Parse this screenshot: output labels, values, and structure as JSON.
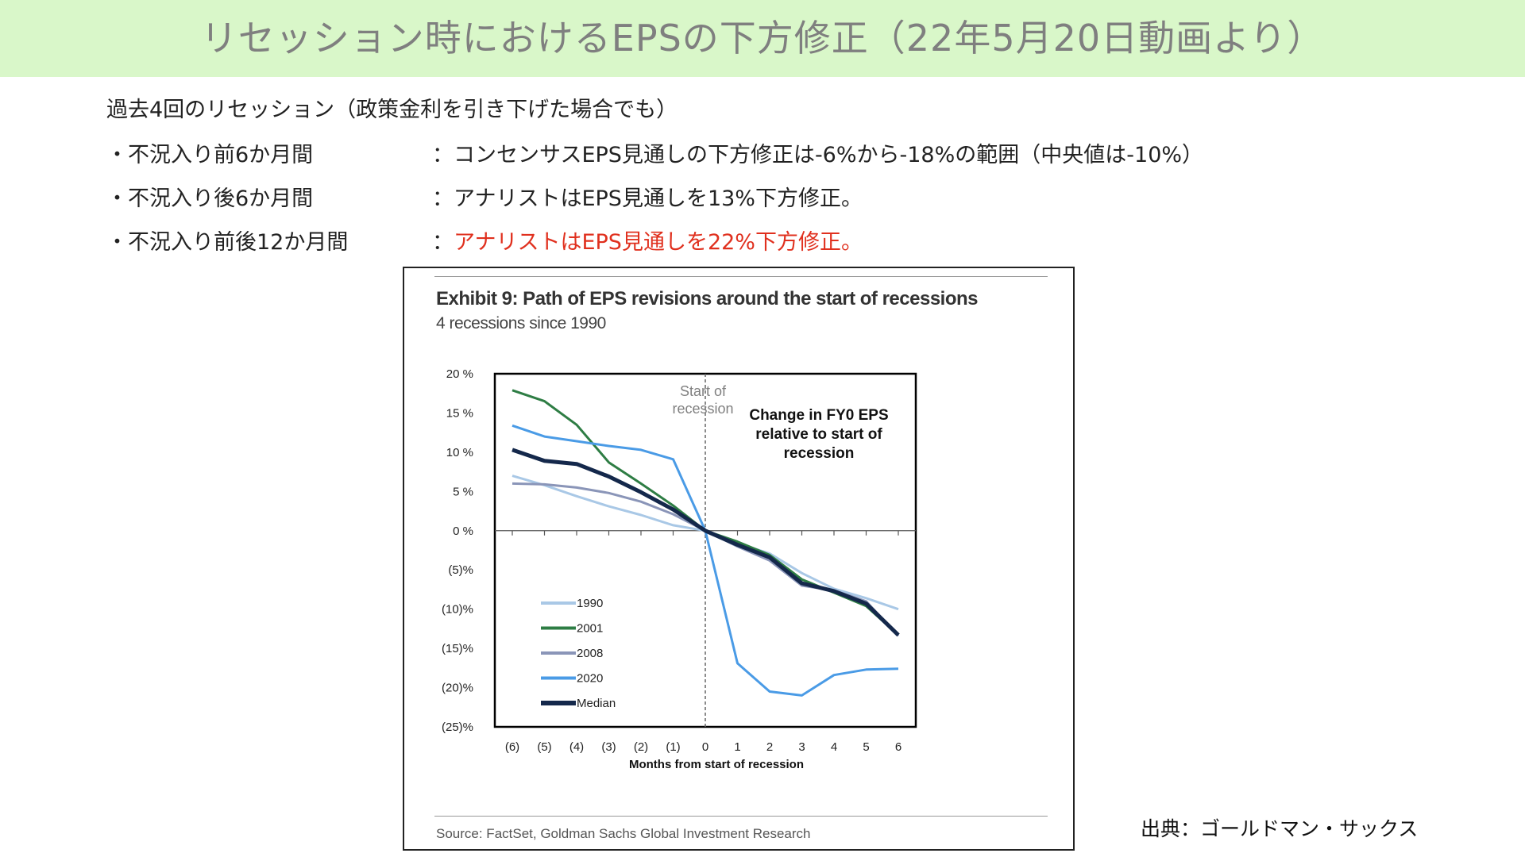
{
  "banner": {
    "title": "リセッション時におけるEPSの下方修正（22年5月20日動画より）",
    "bg_color": "#d9f7c9",
    "text_color": "#7f7f7f"
  },
  "summary": {
    "intro": "過去4回のリセッション（政策金利を引き下げた場合でも）",
    "rows": [
      {
        "label": "・不況入り前6か月間",
        "value": "：コンセンサスEPS見通しの下方修正は-6%から-18%の範囲（中央値は-10%）",
        "highlight": false
      },
      {
        "label": "・不況入り後6か月間",
        "value": "：アナリストはEPS見通しを13%下方修正。",
        "highlight": false
      },
      {
        "label": "・不況入り前後12か月間",
        "value": "：",
        "value_highlight": "アナリストはEPS見通しを22%下方修正。",
        "highlight": true
      }
    ],
    "highlight_color": "#e0301e"
  },
  "exhibit": {
    "title": "Exhibit 9: Path of EPS revisions around the start of recessions",
    "subtitle": "4 recessions since 1990",
    "source": "Source: FactSet, Goldman Sachs Global Investment Research"
  },
  "credit": "出典：ゴールドマン・サックス",
  "chart_data": {
    "type": "line",
    "title": "Exhibit 9: Path of EPS revisions around the start of recessions",
    "subtitle": "4 recessions since 1990",
    "xlabel": "Months from start of recession",
    "ylabel": "",
    "x": [
      -6,
      -5,
      -4,
      -3,
      -2,
      -1,
      0,
      1,
      2,
      3,
      4,
      5,
      6
    ],
    "x_tick_labels": [
      "(6)",
      "(5)",
      "(4)",
      "(3)",
      "(2)",
      "(1)",
      "0",
      "1",
      "2",
      "3",
      "4",
      "5",
      "6"
    ],
    "ylim": [
      -25,
      20
    ],
    "y_ticks": [
      20,
      15,
      10,
      5,
      0,
      -5,
      -10,
      -15,
      -20,
      -25
    ],
    "y_tick_labels": [
      "20 %",
      "15 %",
      "10 %",
      "5 %",
      "0 %",
      "(5)%",
      "(10)%",
      "(15)%",
      "(20)%",
      "(25)%"
    ],
    "series": [
      {
        "name": "1990",
        "color": "#a9c8e6",
        "width": 3,
        "values": [
          7.0,
          5.8,
          4.4,
          3.1,
          2.0,
          0.7,
          0,
          -1.6,
          -2.9,
          -5.4,
          -7.4,
          -8.6,
          -10.0
        ]
      },
      {
        "name": "2001",
        "color": "#2e7d44",
        "width": 3,
        "values": [
          17.9,
          16.5,
          13.5,
          8.7,
          6.0,
          3.2,
          0,
          -1.4,
          -3.1,
          -6.2,
          -7.9,
          -9.6,
          -13.3
        ]
      },
      {
        "name": "2008",
        "color": "#8a95b8",
        "width": 3,
        "values": [
          6.0,
          5.9,
          5.5,
          4.8,
          3.7,
          2.1,
          0,
          -2.0,
          -3.8,
          -7.0,
          -7.6,
          -9.0,
          -13.4
        ]
      },
      {
        "name": "2020",
        "color": "#4a9be6",
        "width": 3,
        "values": [
          13.4,
          12.0,
          11.4,
          10.8,
          10.3,
          9.1,
          0,
          -16.9,
          -20.5,
          -21.0,
          -18.4,
          -17.7,
          -17.6
        ]
      },
      {
        "name": "Median",
        "color": "#14284b",
        "width": 5,
        "values": [
          10.3,
          8.9,
          8.5,
          6.9,
          4.9,
          2.7,
          0,
          -1.8,
          -3.4,
          -6.7,
          -7.7,
          -9.3,
          -13.3
        ]
      }
    ],
    "annotations": [
      {
        "text": "Start of\nrecession",
        "color": "#808080"
      },
      {
        "text": "Change in FY0 EPS\nrelative to start of\nrecession",
        "color": "#111111"
      }
    ],
    "vline_at": 0,
    "legend": "bottom-left",
    "grid": false
  }
}
